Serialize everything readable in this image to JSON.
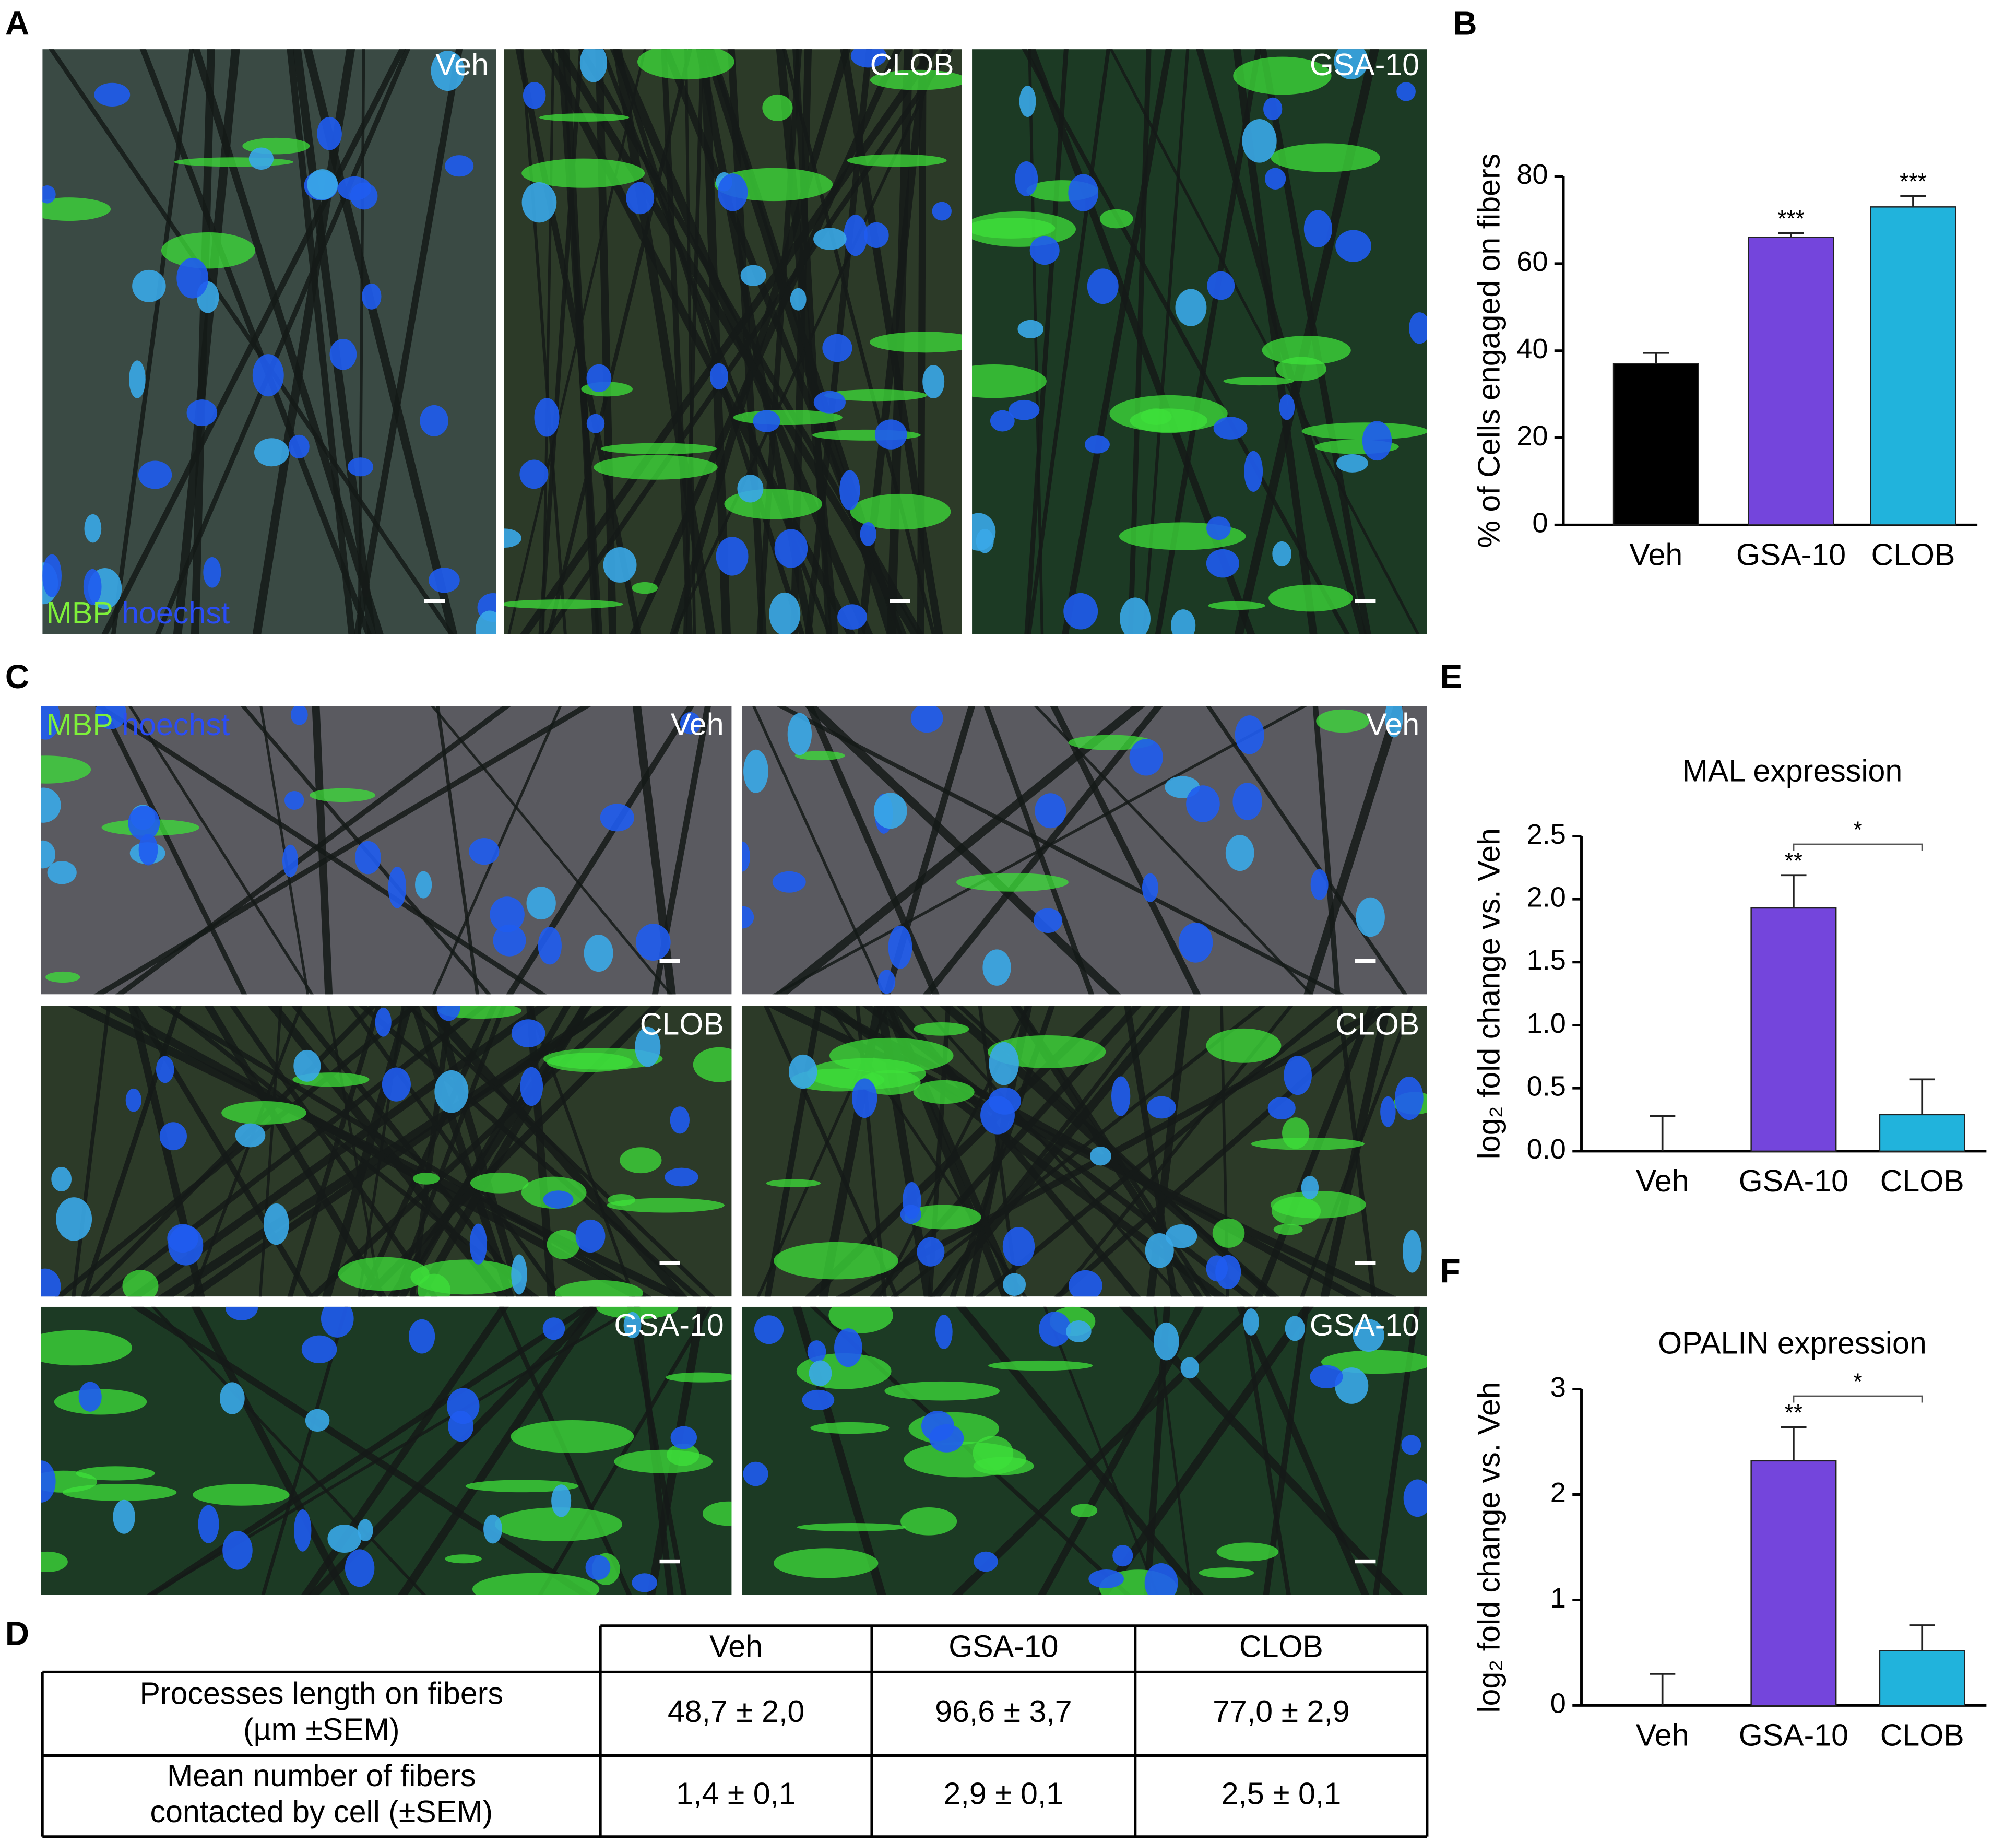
{
  "panel_A": {
    "label": "A",
    "images": [
      "Veh",
      "CLOB",
      "GSA-10"
    ],
    "stains": [
      "MBP",
      "hoechst"
    ]
  },
  "panel_C": {
    "label": "C",
    "images": [
      "Veh",
      "Veh",
      "CLOB",
      "CLOB",
      "GSA-10",
      "GSA-10"
    ],
    "stains": [
      "MBP",
      "hoechst"
    ]
  },
  "panel_D": {
    "label": "D",
    "header": [
      "Veh",
      "GSA-10",
      "CLOB"
    ],
    "rows": [
      {
        "head": [
          "Processes length on fibers",
          "(µm ±SEM)"
        ],
        "cells": [
          "48,7 ± 2,0",
          "96,6 ± 3,7",
          "77,0 ± 2,9"
        ]
      },
      {
        "head": [
          "Mean number of fibers",
          "contacted by cell (±SEM)"
        ],
        "cells": [
          "1,4 ± 0,1",
          "2,9 ± 0,1",
          "2,5 ± 0,1"
        ]
      }
    ]
  },
  "chart_data": [
    {
      "type": "bar",
      "panel": "B",
      "ylabel": "% of Cells engaged on fibers",
      "categories": [
        "Veh",
        "GSA-10",
        "CLOB"
      ],
      "values": [
        37,
        66,
        73
      ],
      "errors": [
        2.5,
        1,
        2.5
      ],
      "colors": [
        "#000000",
        "#7445dc",
        "#21b3dc"
      ],
      "significance": [
        null,
        "***",
        "***"
      ],
      "ylim": [
        0,
        80
      ],
      "yticks": [
        0,
        20,
        40,
        60,
        80
      ]
    },
    {
      "type": "bar",
      "panel": "E",
      "title": "MAL expression",
      "ylabel": "log₂ fold change vs. Veh",
      "categories": [
        "Veh",
        "GSA-10",
        "CLOB"
      ],
      "values": [
        0,
        1.93,
        0.29
      ],
      "errors": [
        0.28,
        0.26,
        0.28
      ],
      "colors": [
        "#000000",
        "#7445dc",
        "#21b3dc"
      ],
      "significance": [
        null,
        "**",
        null
      ],
      "bracket_label": "*",
      "ylim": [
        0,
        2.5
      ],
      "yticks": [
        {
          "value": 0,
          "label": "0.0"
        },
        0.5,
        {
          "value": 1,
          "label": "1.0"
        },
        1.5,
        {
          "value": 2,
          "label": "2.0"
        },
        2.5
      ]
    },
    {
      "type": "bar",
      "panel": "F",
      "title": "OPALIN expression",
      "ylabel": "log₂ fold change vs. Veh",
      "categories": [
        "Veh",
        "GSA-10",
        "CLOB"
      ],
      "values": [
        0,
        2.32,
        0.52
      ],
      "errors": [
        0.3,
        0.32,
        0.24
      ],
      "colors": [
        "#000000",
        "#7445dc",
        "#21b3dc"
      ],
      "significance": [
        null,
        "**",
        null
      ],
      "bracket_label": "*",
      "ylim": [
        0,
        3
      ],
      "yticks": [
        0,
        1,
        2,
        3
      ]
    }
  ]
}
